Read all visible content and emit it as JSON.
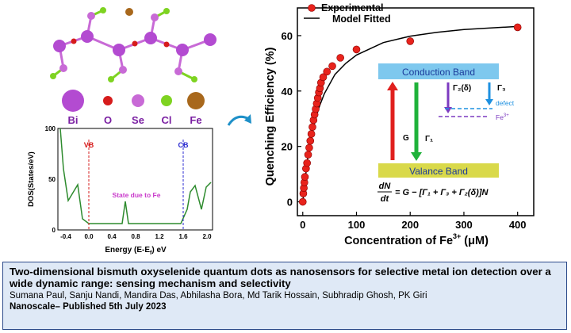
{
  "structure": {
    "legend": [
      {
        "symbol": "Bi",
        "color": "#b34bd1"
      },
      {
        "symbol": "O",
        "color": "#d61b1b"
      },
      {
        "symbol": "Se",
        "color": "#c86ad6"
      },
      {
        "symbol": "Cl",
        "color": "#7ed321"
      },
      {
        "symbol": "Fe",
        "color": "#a8681c"
      }
    ]
  },
  "dos_plot": {
    "ylabel": "DOS(States/eV)",
    "xlabel_main": "Energy (E-E",
    "xlabel_sub": "f",
    "xlabel_end": ") eV",
    "vb_label": "VB",
    "cb_label": "CB",
    "annotation": "State due to Fe",
    "yticks": [
      "100",
      "50",
      "0"
    ],
    "xticks": [
      "-0.4",
      "0.0",
      "0.4",
      "0.8",
      "1.2",
      "1.6",
      "2.0"
    ]
  },
  "chart_data": {
    "type": "scatter",
    "xlabel_main": "Concentration of Fe",
    "xlabel_sup": "3+",
    "xlabel_unit": " (μM)",
    "ylabel": "Quenching Efficiency (%)",
    "xlim": [
      -10,
      430
    ],
    "ylim": [
      -5,
      70
    ],
    "xticks": [
      0,
      100,
      200,
      300,
      400
    ],
    "yticks": [
      0,
      20,
      40,
      60
    ],
    "legend": [
      "Experimental",
      "Model Fitted"
    ],
    "legend_position": "top-left",
    "series": [
      {
        "name": "Experimental",
        "marker": "circle",
        "color": "#e8231c",
        "x": [
          0,
          1,
          2,
          3,
          4,
          6,
          8,
          10,
          12,
          14,
          16,
          18,
          20,
          22,
          24,
          26,
          28,
          30,
          32,
          34,
          38,
          45,
          55,
          70,
          100,
          200,
          400
        ],
        "y": [
          0,
          3,
          5,
          7,
          9,
          12,
          14,
          17,
          19.5,
          22,
          24.5,
          27,
          29.5,
          31.5,
          33.5,
          35.5,
          37.5,
          39.5,
          41,
          43,
          45,
          47,
          49,
          52,
          55,
          58,
          63
        ]
      },
      {
        "name": "Model Fitted",
        "type": "line",
        "color": "#000000",
        "x": [
          0,
          5,
          10,
          20,
          30,
          40,
          60,
          80,
          100,
          150,
          200,
          250,
          300,
          350,
          400
        ],
        "y": [
          0,
          9,
          17,
          27,
          34,
          39,
          46,
          50,
          53,
          57.5,
          59.8,
          61.2,
          62.2,
          62.8,
          63.3
        ]
      }
    ]
  },
  "inset": {
    "conduction_band": "Conduction Band",
    "valence_band": "Valance Band",
    "g_label": "G",
    "gamma1": "Γ₁",
    "gamma2": "Γ₂(δ)",
    "gamma3": "Γ₃",
    "defect_label": "defect",
    "fe_label": "Fe",
    "fe_sup": "3+",
    "equation_lhs_num": "dN",
    "equation_lhs_den": "dt",
    "equation_rhs": "= G − [Γ₁ + Γ₃ + Γ₂(δ)]N"
  },
  "caption": {
    "title": "Two-dimensional bismuth oxyselenide quantum dots as nanosensors for selective metal ion detection over a wide dynamic range: sensing mechanism and selectivity",
    "authors": "Sumana Paul, Sanju Nandi, Mandira Das, Abhilasha Bora, Md Tarik Hossain, Subhradip Ghosh, PK Giri",
    "journal": "Nanoscale– Published 5th July 2023"
  }
}
